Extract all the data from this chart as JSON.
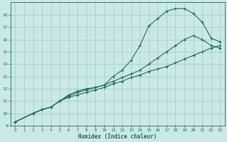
{
  "xlabel": "Humidex (Indice chaleur)",
  "bg_color": "#cbe8e8",
  "grid_color": "#a8cccc",
  "line_color": "#1a6b5a",
  "xlim": [
    -0.5,
    23.5
  ],
  "ylim": [
    9,
    19
  ],
  "xticks": [
    0,
    1,
    2,
    3,
    4,
    5,
    6,
    7,
    8,
    9,
    10,
    11,
    12,
    13,
    14,
    15,
    16,
    17,
    18,
    19,
    20,
    21,
    22,
    23
  ],
  "yticks": [
    9,
    10,
    11,
    12,
    13,
    14,
    15,
    16,
    17,
    18
  ],
  "line1_x": [
    0,
    2,
    3,
    4,
    5,
    6,
    7,
    8,
    9,
    10,
    11,
    12,
    13,
    14,
    15,
    16,
    17,
    18,
    19,
    20,
    21,
    22,
    23
  ],
  "line1_y": [
    9.3,
    10.0,
    10.3,
    10.5,
    11.0,
    11.5,
    11.8,
    12.0,
    12.1,
    12.3,
    13.0,
    13.5,
    14.3,
    15.5,
    17.1,
    17.7,
    18.3,
    18.5,
    18.5,
    18.1,
    17.4,
    16.1,
    15.8
  ],
  "line2_x": [
    0,
    2,
    3,
    4,
    5,
    6,
    7,
    8,
    9,
    10,
    11,
    12,
    13,
    14,
    15,
    16,
    17,
    18,
    19,
    20,
    21,
    22,
    23
  ],
  "line2_y": [
    9.3,
    10.0,
    10.3,
    10.5,
    11.0,
    11.4,
    11.7,
    11.9,
    12.1,
    12.3,
    12.6,
    12.9,
    13.2,
    13.5,
    14.0,
    14.5,
    15.0,
    15.5,
    16.0,
    16.3,
    16.0,
    15.5,
    15.3
  ],
  "line3_x": [
    0,
    2,
    3,
    4,
    5,
    6,
    7,
    8,
    9,
    10,
    11,
    12,
    13,
    14,
    15,
    16,
    17,
    18,
    19,
    20,
    21,
    22,
    23
  ],
  "line3_y": [
    9.3,
    10.0,
    10.3,
    10.5,
    11.0,
    11.3,
    11.5,
    11.7,
    11.9,
    12.1,
    12.4,
    12.6,
    12.9,
    13.1,
    13.4,
    13.6,
    13.8,
    14.1,
    14.4,
    14.7,
    15.0,
    15.3,
    15.5
  ]
}
